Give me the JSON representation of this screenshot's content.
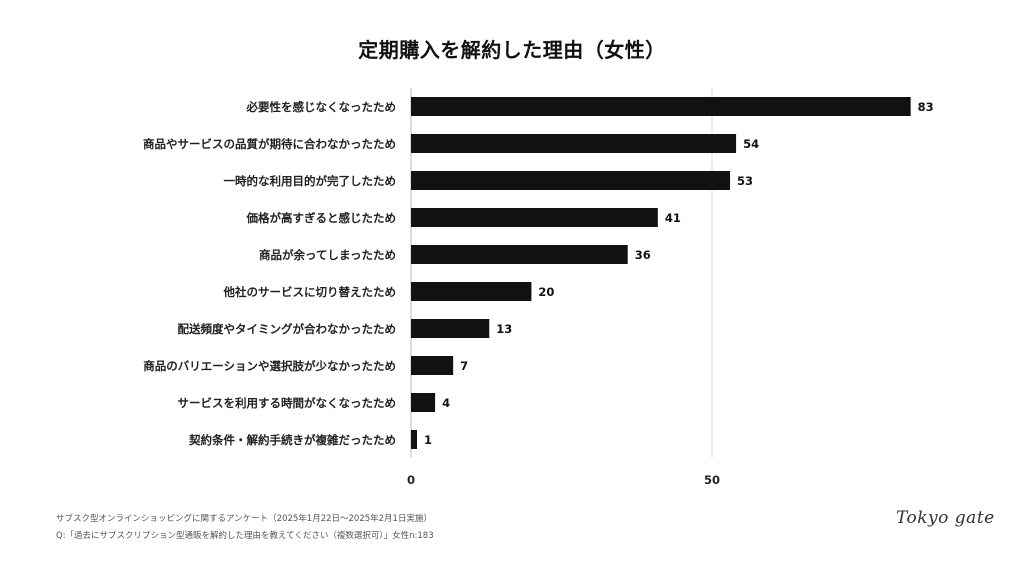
{
  "chart_data": {
    "type": "bar",
    "orientation": "horizontal",
    "title": "定期購入を解約した理由（女性）",
    "categories": [
      "必要性を感じなくなったため",
      "商品やサービスの品質が期待に合わなかったため",
      "一時的な利用目的が完了したため",
      "価格が高すぎると感じたため",
      "商品が余ってしまったため",
      "他社のサービスに切り替えたため",
      "配送頻度やタイミングが合わなかったため",
      "商品のバリエーションや選択肢が少なかったため",
      "サービスを利用する時間がなくなったため",
      "契約条件・解約手続きが複雑だったため"
    ],
    "values": [
      83,
      54,
      53,
      41,
      36,
      20,
      13,
      7,
      4,
      1
    ],
    "xlim": [
      0,
      100
    ],
    "xticks": [
      0,
      50
    ],
    "grid": true,
    "bar_color": "#111111",
    "grid_color": "#dddddd"
  },
  "footer": {
    "line1": "サブスク型オンラインショッピングに関するアンケート（2025年1月22日〜2025年2月1日実施）",
    "line2": "Q:「過去にサブスクリプション型通販を解約した理由を教えてください（複数選択可）」女性n:183"
  },
  "logo": {
    "text": "Tokyo gate"
  }
}
